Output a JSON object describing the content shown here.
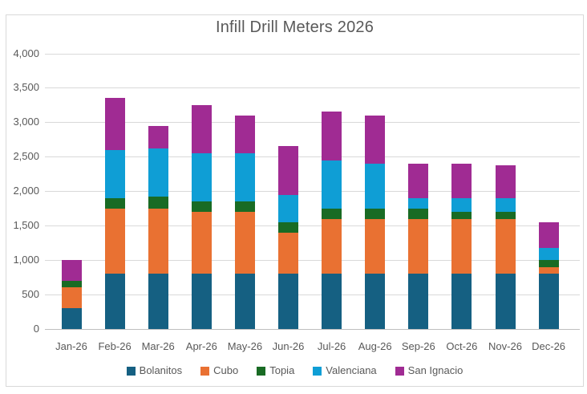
{
  "chart_data": {
    "type": "bar",
    "stacked": true,
    "title": "Infill Drill Meters 2026",
    "categories": [
      "Jan-26",
      "Feb-26",
      "Mar-26",
      "Apr-26",
      "May-26",
      "Jun-26",
      "Jul-26",
      "Aug-26",
      "Sep-26",
      "Oct-26",
      "Nov-26",
      "Dec-26"
    ],
    "series": [
      {
        "name": "Bolanitos",
        "color": "#156082",
        "values": [
          300,
          800,
          800,
          800,
          800,
          800,
          800,
          800,
          800,
          800,
          800,
          800
        ]
      },
      {
        "name": "Cubo",
        "color": "#E97132",
        "values": [
          300,
          950,
          950,
          900,
          900,
          600,
          800,
          800,
          800,
          800,
          800,
          100
        ]
      },
      {
        "name": "Topia",
        "color": "#196B24",
        "values": [
          100,
          150,
          175,
          150,
          150,
          150,
          150,
          150,
          150,
          100,
          100,
          100
        ]
      },
      {
        "name": "Valenciana",
        "color": "#0F9ED5",
        "values": [
          0,
          700,
          700,
          700,
          700,
          400,
          700,
          650,
          150,
          200,
          200,
          175
        ]
      },
      {
        "name": "San Ignacio",
        "color": "#A02B93",
        "values": [
          300,
          750,
          325,
          700,
          550,
          700,
          700,
          700,
          500,
          500,
          475,
          375
        ]
      }
    ],
    "totals": [
      1000,
      3350,
      2950,
      3250,
      3100,
      2650,
      3150,
      3100,
      2400,
      2400,
      2375,
      1550
    ],
    "ylim": [
      0,
      4000
    ],
    "ytick_step": 500,
    "ytick_labels": [
      "0",
      "500",
      "1,000",
      "1,500",
      "2,000",
      "2,500",
      "3,000",
      "3,500",
      "4,000"
    ],
    "grid": true,
    "legend_position": "bottom",
    "colors": {
      "text": "#595959",
      "gridline": "#D9D9D9",
      "axis_line": "#BFBFBF",
      "background": "#FFFFFF",
      "border": "#D9D9D9"
    }
  }
}
